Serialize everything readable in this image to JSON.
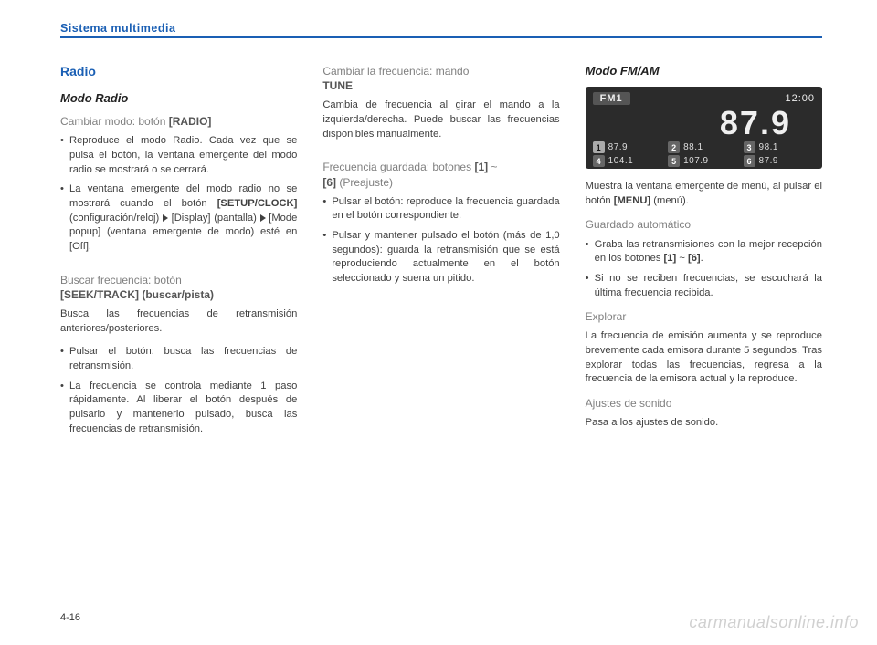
{
  "header": "Sistema multimedia",
  "pageNumber": "4-16",
  "watermark": "carmanualsonline.info",
  "col1": {
    "title": "Radio",
    "sub": "Modo Radio",
    "h1_a": "Cambiar modo: botón ",
    "h1_b": "[RADIO]",
    "b1": "Reproduce el modo Radio. Cada vez que se pulsa el botón, la ventana emergente del modo radio se mostrará o se cerrará.",
    "b2_a": "La ventana emergente del modo radio no se mostrará cuando el botón ",
    "b2_b": "[SETUP/CLOCK]",
    "b2_c": " (configu­ración/reloj) ",
    "b2_d": " [Display] (pantalla) ",
    "b2_e": " [Mode popup] (ventana emergente de modo) esté en [Off].",
    "h2_a": "Buscar frecuencia: botón",
    "h2_b": "[SEEK/TRACK] (buscar/pista)",
    "p2": "Busca las frecuencias de retransmisión anteriores/posteriores.",
    "b3": "Pulsar el botón: busca las frecuencias de retransmisión.",
    "b4": "La frecuencia se controla mediante 1 paso rápidamente. Al liberar el botón después de pulsarlo y mantenerlo pulsado, busca las frecuencias de retransmisión."
  },
  "col2": {
    "h1_a": "Cambiar la frecuencia: mando",
    "h1_b": "TUNE",
    "p1": "Cambia de frecuencia al girar el mando a la izquierda/derecha. Puede buscar las frecuencias disponibles manualmente.",
    "h2_a": "Frecuencia guardada: botones ",
    "h2_b": "[1]",
    "h2_c": " ~ ",
    "h2_d": "[6]",
    "h2_e": " (Preajuste)",
    "b1": "Pulsar el botón: reproduce la frecuencia guardada en el botón correspondiente.",
    "b2": "Pulsar y mantener pulsado el botón (más de 1,0 segundos): guarda la retransmisión que se está reproduciendo actualmente en el botón seleccionado y suena un pitido."
  },
  "col3": {
    "sub": "Modo FM/AM",
    "display": {
      "band": "FM1",
      "time": "12:00",
      "freq": "87.9",
      "presets": [
        {
          "n": "1",
          "v": "87.9",
          "active": true
        },
        {
          "n": "2",
          "v": "88.1"
        },
        {
          "n": "3",
          "v": "98.1"
        },
        {
          "n": "4",
          "v": "104.1"
        },
        {
          "n": "5",
          "v": "107.9"
        },
        {
          "n": "6",
          "v": "87.9"
        }
      ]
    },
    "p1_a": "Muestra la ventana emergente de menú, al pulsar el botón ",
    "p1_b": "[MENU]",
    "p1_c": " (menú).",
    "h2": "Guardado automático",
    "b1_a": "Graba las retransmisiones con la mejor recepción en los botones ",
    "b1_b": "[1]",
    "b1_c": " ~ ",
    "b1_d": "[6]",
    "b1_e": ".",
    "b2": "Si no se reciben frecuencias, se escuchará la última frecuencia recibida.",
    "h3": "Explorar",
    "p3": "La frecuencia de emisión aumenta y se reproduce brevemente cada emisora durante 5 segundos. Tras explorar todas las frecuencias, regresa a la frecuencia de la emisora actual y la reproduce.",
    "h4": "Ajustes de sonido",
    "p4": "Pasa a los ajustes de sonido."
  }
}
